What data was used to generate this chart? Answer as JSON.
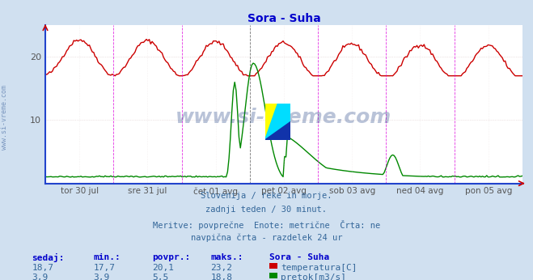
{
  "title": "Sora - Suha",
  "title_color": "#0000cc",
  "background_color": "#d0e0f0",
  "plot_background_color": "#ffffff",
  "x_labels": [
    "tor 30 jul",
    "sre 31 jul",
    "čet 01 avg",
    "pet 02 avg",
    "sob 03 avg",
    "ned 04 avg",
    "pon 05 avg"
  ],
  "ylim": [
    0,
    25
  ],
  "yticks": [
    10,
    20
  ],
  "grid_color": "#ddcccc",
  "grid_dotted_color": "#ccbbbb",
  "vline_color": "#dd00dd",
  "vline_style": "--",
  "left_spine_color": "#2244cc",
  "bottom_spine_color": "#2244cc",
  "temp_color": "#cc0000",
  "flow_color": "#008800",
  "temp_linewidth": 1.0,
  "flow_linewidth": 1.0,
  "watermark_text": "www.si-vreme.com",
  "watermark_color": "#1a3a80",
  "watermark_alpha": 0.3,
  "side_watermark_color": "#5577aa",
  "subtitle_lines": [
    "Slovenija / reke in morje.",
    "zadnji teden / 30 minut.",
    "Meritve: povprečne  Enote: metrične  Črta: ne",
    "navpična črta - razdelek 24 ur"
  ],
  "subtitle_color": "#336699",
  "legend_header": "Sora - Suha",
  "legend_items": [
    {
      "label": "temperatura[C]",
      "color": "#cc0000"
    },
    {
      "label": "pretok[m3/s]",
      "color": "#008800"
    }
  ],
  "stats_header": [
    "sedaj:",
    "min.:",
    "povpr.:",
    "maks.:"
  ],
  "stats_temp": [
    "18,7",
    "17,7",
    "20,1",
    "23,2"
  ],
  "stats_flow": [
    "3,9",
    "3,9",
    "5,5",
    "18,8"
  ],
  "stats_color": "#336699",
  "stats_header_color": "#0000cc",
  "logo_colors": [
    "#ffff00",
    "#00ddff",
    "#1133aa"
  ],
  "n_days": 7,
  "pts_per_day": 48
}
